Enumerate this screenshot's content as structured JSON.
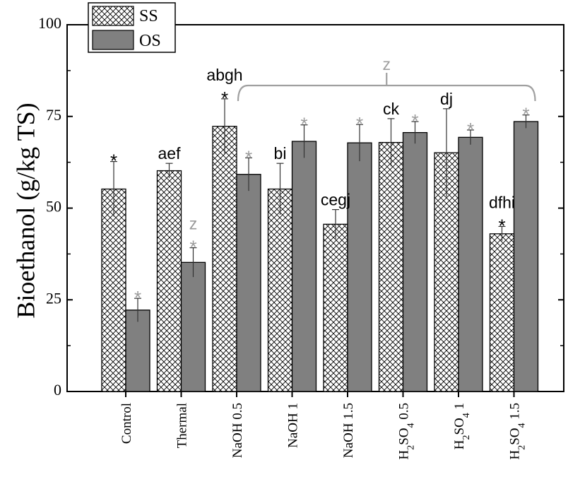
{
  "chart_data": {
    "type": "bar",
    "ylabel": "Bioethanol (g/kg TS)",
    "xlabel": "",
    "ylim": [
      0,
      100
    ],
    "yticks": [
      0,
      25,
      50,
      75,
      100
    ],
    "categories": [
      {
        "main": "Control",
        "sub": "",
        "tail": ""
      },
      {
        "main": "Thermal",
        "sub": "",
        "tail": ""
      },
      {
        "main": "NaOH 0.5",
        "sub": "",
        "tail": ""
      },
      {
        "main": "NaOH  1",
        "sub": "",
        "tail": ""
      },
      {
        "main": "NaOH  1.5",
        "sub": "",
        "tail": ""
      },
      {
        "main": "H",
        "sub": "2",
        "tail": "SO4 0.5"
      },
      {
        "main": "H",
        "sub": "2",
        "tail": "SO4 1"
      },
      {
        "main": "H",
        "sub": "2",
        "tail": "SO4 1.5"
      }
    ],
    "category_labels_plain": [
      "Control",
      "Thermal",
      "NaOH 0.5",
      "NaOH  1",
      "NaOH  1.5",
      "H2SO4 0.5",
      "H2SO4 1",
      "H2SO4 1.5"
    ],
    "series": [
      {
        "name": "SS",
        "pattern": "crosshatch",
        "values": [
          55.2,
          60.2,
          72.3,
          55.2,
          45.6,
          67.9,
          65.1,
          43.0
        ],
        "errors": [
          7.5,
          2.0,
          7.5,
          7.0,
          4.0,
          6.5,
          12.0,
          2.0
        ]
      },
      {
        "name": "OS",
        "pattern": "solid",
        "color": "#808080",
        "values": [
          22.2,
          35.2,
          59.2,
          68.2,
          67.8,
          70.6,
          69.3,
          73.6
        ],
        "errors": [
          3.2,
          4.0,
          4.5,
          4.5,
          5.0,
          3.0,
          2.0,
          1.8
        ]
      }
    ],
    "annotations": [
      {
        "category": 0,
        "series": 0,
        "letters": "",
        "star": true
      },
      {
        "category": 1,
        "series": 0,
        "letters": "aef",
        "star": false
      },
      {
        "category": 2,
        "series": 0,
        "letters": "abgh",
        "star": true
      },
      {
        "category": 3,
        "series": 0,
        "letters": "bi",
        "star": false
      },
      {
        "category": 4,
        "series": 0,
        "letters": "cegj",
        "star": false
      },
      {
        "category": 5,
        "series": 0,
        "letters": "ck",
        "star": false
      },
      {
        "category": 6,
        "series": 0,
        "letters": "dj",
        "star": false
      },
      {
        "category": 7,
        "series": 0,
        "letters": "dfhi",
        "star": true
      },
      {
        "category": 0,
        "series": 1,
        "letters": "",
        "star": true
      },
      {
        "category": 1,
        "series": 1,
        "letters": "z",
        "star": true
      },
      {
        "category": 2,
        "series": 1,
        "letters": "",
        "star": true
      },
      {
        "category": 3,
        "series": 1,
        "letters": "",
        "star": true
      },
      {
        "category": 4,
        "series": 1,
        "letters": "",
        "star": true
      },
      {
        "category": 5,
        "series": 1,
        "letters": "",
        "star": true
      },
      {
        "category": 6,
        "series": 1,
        "letters": "",
        "star": true
      },
      {
        "category": 7,
        "series": 1,
        "letters": "",
        "star": true
      }
    ],
    "bracket": {
      "label": "z",
      "from_category": 2,
      "to_category": 7
    },
    "star_symbol": "*",
    "star_colors": {
      "SS": "#000000",
      "OS": "#9a9a9a"
    },
    "bracket_color": "#a0a0a0",
    "legend": {
      "position": "top-left",
      "entries": [
        "SS",
        "OS"
      ]
    },
    "grid": false
  }
}
